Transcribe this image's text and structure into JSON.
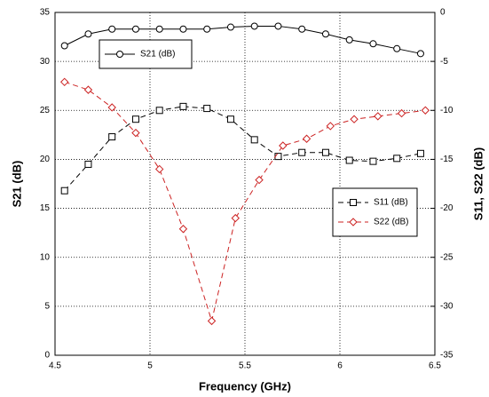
{
  "chart_data": {
    "type": "line",
    "xlabel": "Frequency (GHz)",
    "ylabel": "S21 (dB)",
    "y2label": "S11, S22 (dB)",
    "xlim": [
      4.5,
      6.5
    ],
    "xticks": [
      4.5,
      5,
      5.5,
      6,
      6.5
    ],
    "ylim": [
      0,
      35
    ],
    "yticks": [
      0,
      5,
      10,
      15,
      20,
      25,
      30,
      35
    ],
    "y2lim": [
      -35,
      0
    ],
    "y2ticks": [
      -35,
      -30,
      -25,
      -20,
      -15,
      -10,
      -5,
      0
    ],
    "grid": true,
    "series": [
      {
        "name": "S21 (dB)",
        "color": "#000000",
        "marker": "circle",
        "dashed": false,
        "x": [
          4.55,
          4.675,
          4.8,
          4.925,
          5.05,
          5.175,
          5.3,
          5.425,
          5.55,
          5.675,
          5.8,
          5.925,
          6.05,
          6.175,
          6.3,
          6.425
        ],
        "values": [
          31.6,
          32.8,
          33.3,
          33.3,
          33.3,
          33.3,
          33.3,
          33.5,
          33.6,
          33.6,
          33.3,
          32.8,
          32.2,
          31.8,
          31.3,
          30.8
        ]
      },
      {
        "name": "S11 (dB)",
        "color": "#000000",
        "marker": "square",
        "dashed": true,
        "axis": "y2",
        "x": [
          4.55,
          4.675,
          4.8,
          4.925,
          5.05,
          5.175,
          5.3,
          5.425,
          5.55,
          5.675,
          5.8,
          5.925,
          6.05,
          6.175,
          6.3,
          6.425
        ],
        "values": [
          -18.2,
          -15.5,
          -12.7,
          -10.9,
          -10.0,
          -9.6,
          -9.8,
          -10.9,
          -13.0,
          -14.7,
          -14.3,
          -14.3,
          -15.1,
          -15.2,
          -14.9,
          -14.4
        ]
      },
      {
        "name": "S22 (dB)",
        "color": "#cc2222",
        "marker": "diamond",
        "dashed": true,
        "axis": "y2",
        "x": [
          4.55,
          4.675,
          4.8,
          4.925,
          5.05,
          5.175,
          5.325,
          5.45,
          5.575,
          5.7,
          5.825,
          5.95,
          6.075,
          6.2,
          6.325,
          6.45
        ],
        "values": [
          -7.1,
          -7.9,
          -9.7,
          -12.3,
          -16.0,
          -22.1,
          -31.5,
          -21.0,
          -17.1,
          -13.6,
          -12.9,
          -11.6,
          -10.9,
          -10.6,
          -10.3,
          -10.0
        ]
      }
    ]
  }
}
